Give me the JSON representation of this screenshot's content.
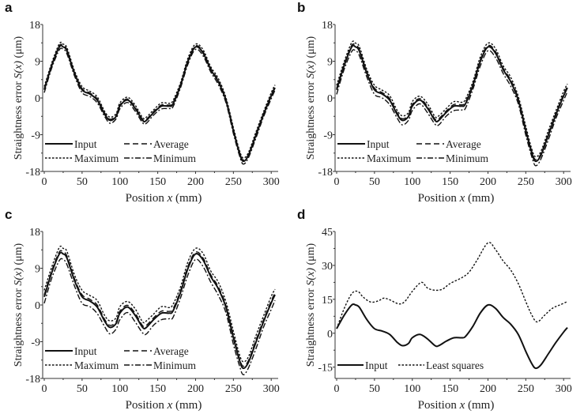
{
  "chart_data": [
    {
      "panel": "a",
      "type": "line",
      "xlabel": "Position x (mm)",
      "ylabel": "Straightness error S(x) (μm)",
      "xlim": [
        0,
        305
      ],
      "ylim": [
        -18,
        18
      ],
      "xticks": [
        0,
        50,
        100,
        150,
        200,
        250,
        300
      ],
      "yticks": [
        -18,
        -9,
        0,
        9,
        18
      ],
      "legend": [
        "Input",
        "Average",
        "Maximum",
        "Minimum"
      ],
      "legend_position": "bottom-left",
      "x": [
        0,
        10,
        20,
        25,
        30,
        40,
        50,
        60,
        70,
        80,
        87,
        95,
        100,
        110,
        120,
        130,
        135,
        145,
        155,
        165,
        170,
        180,
        190,
        200,
        210,
        220,
        230,
        240,
        250,
        258,
        263,
        270,
        280,
        290,
        300,
        305
      ],
      "series": [
        {
          "name": "Input",
          "values": [
            2,
            8,
            12.5,
            12.5,
            11.5,
            6,
            2,
            1,
            -0.5,
            -4,
            -5.5,
            -4.5,
            -2,
            -0.5,
            -2.5,
            -5.5,
            -5.5,
            -3.5,
            -2,
            -2,
            -1.5,
            3,
            9,
            12.5,
            11,
            7,
            4,
            -0.5,
            -8,
            -13.5,
            -15.5,
            -14,
            -9,
            -4,
            0.5,
            2.5
          ]
        },
        {
          "name": "Maximum",
          "offset": 0.8
        },
        {
          "name": "Average",
          "offset": 0.3
        },
        {
          "name": "Minimum",
          "offset": -0.7
        }
      ]
    },
    {
      "panel": "b",
      "type": "line",
      "xlabel": "Position x (mm)",
      "ylabel": "Straightness error S(x) (μm)",
      "xlim": [
        0,
        305
      ],
      "ylim": [
        -18,
        18
      ],
      "xticks": [
        0,
        50,
        100,
        150,
        200,
        250,
        300
      ],
      "yticks": [
        -18,
        -9,
        0,
        9,
        18
      ],
      "legend": [
        "Input",
        "Average",
        "Maximum",
        "Minimum"
      ],
      "legend_position": "bottom-left",
      "series": [
        {
          "name": "Input",
          "same_as": "a.Input"
        },
        {
          "name": "Maximum",
          "offset": 1.1
        },
        {
          "name": "Average",
          "offset": 0.4
        },
        {
          "name": "Minimum",
          "offset": -1.1
        }
      ]
    },
    {
      "panel": "c",
      "type": "line",
      "xlabel": "Position x (mm)",
      "ylabel": "Straightness error S(x) (μm)",
      "xlim": [
        0,
        305
      ],
      "ylim": [
        -18,
        18
      ],
      "xticks": [
        0,
        50,
        100,
        150,
        200,
        250,
        300
      ],
      "yticks": [
        -18,
        -9,
        0,
        9,
        18
      ],
      "legend": [
        "Input",
        "Average",
        "Maximum",
        "Minimum"
      ],
      "legend_position": "bottom-left",
      "series": [
        {
          "name": "Input",
          "same_as": "a.Input"
        },
        {
          "name": "Maximum",
          "offset": 1.6
        },
        {
          "name": "Average",
          "offset": 0.5
        },
        {
          "name": "Minimum",
          "offset": -1.6
        }
      ]
    },
    {
      "panel": "d",
      "type": "line",
      "xlabel": "Position x (mm)",
      "ylabel": "Straightness error S(x) (μm)",
      "xlim": [
        0,
        305
      ],
      "ylim": [
        -20,
        45
      ],
      "xticks": [
        0,
        50,
        100,
        150,
        200,
        250,
        300
      ],
      "yticks": [
        -15,
        0,
        15,
        30,
        45
      ],
      "legend": [
        "Input",
        "Least squares"
      ],
      "legend_position": "bottom-left",
      "x": [
        0,
        10,
        20,
        28,
        35,
        45,
        55,
        62,
        70,
        82,
        90,
        100,
        112,
        120,
        130,
        140,
        150,
        165,
        175,
        185,
        200,
        210,
        220,
        230,
        240,
        250,
        258,
        265,
        275,
        285,
        295,
        305
      ],
      "series": [
        {
          "name": "Input",
          "same_as": "a.Input"
        },
        {
          "name": "Least squares",
          "values": [
            2,
            11,
            17.5,
            18.5,
            16,
            13.8,
            14.3,
            15.5,
            14.8,
            13,
            14,
            18.5,
            22.5,
            20,
            19,
            19.5,
            22,
            24.5,
            27,
            32,
            40,
            37,
            32,
            28,
            22,
            14,
            8,
            5,
            8,
            11,
            12.5,
            14
          ]
        }
      ]
    }
  ],
  "panels": [
    {
      "label": "a",
      "xlabel_pre": "Position ",
      "xlabel_var": "x",
      "xlabel_post": " (mm)",
      "ylabel_pre": "Straightness error ",
      "ylabel_var": "S(x)",
      "ylabel_post": " (μm)"
    },
    {
      "label": "b",
      "xlabel_pre": "Position ",
      "xlabel_var": "x",
      "xlabel_post": " (mm)",
      "ylabel_pre": "Straightness error ",
      "ylabel_var": "S(x)",
      "ylabel_post": " (μm)"
    },
    {
      "label": "c",
      "xlabel_pre": "Position ",
      "xlabel_var": "x",
      "xlabel_post": " (mm)",
      "ylabel_pre": "Straightness error ",
      "ylabel_var": "S(x)",
      "ylabel_post": " (μm)"
    },
    {
      "label": "d",
      "xlabel_pre": "Position ",
      "xlabel_var": "x",
      "xlabel_post": " (mm)",
      "ylabel_pre": "Straightness error ",
      "ylabel_var": "S(x)",
      "ylabel_post": " (μm)"
    }
  ]
}
